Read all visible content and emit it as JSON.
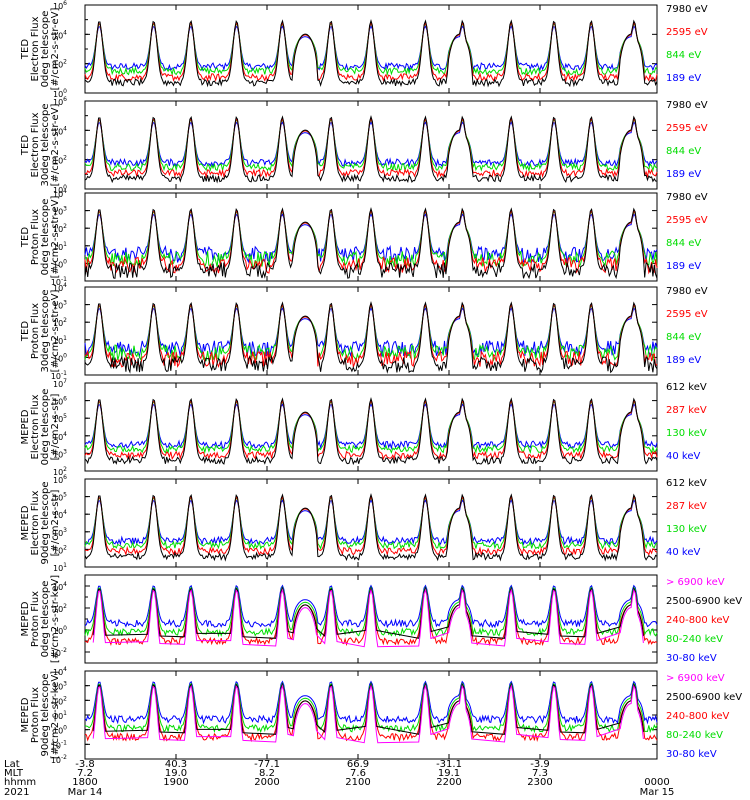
{
  "chart_data": [
    {
      "type": "line",
      "ylabel": [
        "TED",
        "Electron Flux",
        "0deg telescope",
        "[#/cm2-s-str-eV]"
      ],
      "ylim": [
        1,
        1000000
      ],
      "y_log": true,
      "y_ticks": [
        {
          "base": "10",
          "exp": "0"
        },
        {
          "base": "10",
          "exp": "2"
        },
        {
          "base": "10",
          "exp": "4"
        },
        {
          "base": "10",
          "exp": "6"
        }
      ],
      "series": [
        {
          "name": "7980 eV",
          "color": "#000000"
        },
        {
          "name": "2595 eV",
          "color": "#ff0000"
        },
        {
          "name": "844 eV",
          "color": "#00dd00"
        },
        {
          "name": "189 eV",
          "color": "#0000ff"
        }
      ]
    },
    {
      "type": "line",
      "ylabel": [
        "TED",
        "Electron Flux",
        "30deg telescope",
        "[#/cm2-s-str-eV]"
      ],
      "ylim": [
        1,
        1000000
      ],
      "y_log": true,
      "y_ticks": [
        {
          "base": "10",
          "exp": "0"
        },
        {
          "base": "10",
          "exp": "2"
        },
        {
          "base": "10",
          "exp": "4"
        },
        {
          "base": "10",
          "exp": "6"
        }
      ],
      "series": [
        {
          "name": "7980 eV",
          "color": "#000000"
        },
        {
          "name": "2595 eV",
          "color": "#ff0000"
        },
        {
          "name": "844 eV",
          "color": "#00dd00"
        },
        {
          "name": "189 eV",
          "color": "#0000ff"
        }
      ]
    },
    {
      "type": "line",
      "ylabel": [
        "TED",
        "Proton Flux",
        "0deg telescope",
        "[#/cm2-s-str-eV]"
      ],
      "ylim": [
        0.1,
        10000
      ],
      "y_log": true,
      "y_ticks": [
        {
          "base": "10",
          "exp": "-1"
        },
        {
          "base": "10",
          "exp": "0"
        },
        {
          "base": "10",
          "exp": "1"
        },
        {
          "base": "10",
          "exp": "2"
        },
        {
          "base": "10",
          "exp": "3"
        },
        {
          "base": "10",
          "exp": "4"
        }
      ],
      "series": [
        {
          "name": "7980 eV",
          "color": "#000000"
        },
        {
          "name": "2595 eV",
          "color": "#ff0000"
        },
        {
          "name": "844 eV",
          "color": "#00dd00"
        },
        {
          "name": "189 eV",
          "color": "#0000ff"
        }
      ]
    },
    {
      "type": "line",
      "ylabel": [
        "TED",
        "Proton Flux",
        "30deg telescope",
        "[#/cm2-s-str-eV]"
      ],
      "ylim": [
        0.1,
        10000
      ],
      "y_log": true,
      "y_ticks": [
        {
          "base": "10",
          "exp": "-1"
        },
        {
          "base": "10",
          "exp": "0"
        },
        {
          "base": "10",
          "exp": "1"
        },
        {
          "base": "10",
          "exp": "2"
        },
        {
          "base": "10",
          "exp": "3"
        },
        {
          "base": "10",
          "exp": "4"
        }
      ],
      "series": [
        {
          "name": "7980 eV",
          "color": "#000000"
        },
        {
          "name": "2595 eV",
          "color": "#ff0000"
        },
        {
          "name": "844 eV",
          "color": "#00dd00"
        },
        {
          "name": "189 eV",
          "color": "#0000ff"
        }
      ]
    },
    {
      "type": "line",
      "ylabel": [
        "MEPED",
        "Electron Flux",
        "0deg telescope",
        "[#/cm2-s-str]"
      ],
      "ylim": [
        100,
        10000000
      ],
      "y_log": true,
      "y_ticks": [
        {
          "base": "10",
          "exp": "2"
        },
        {
          "base": "10",
          "exp": "3"
        },
        {
          "base": "10",
          "exp": "4"
        },
        {
          "base": "10",
          "exp": "5"
        },
        {
          "base": "10",
          "exp": "6"
        },
        {
          "base": "10",
          "exp": "7"
        }
      ],
      "series": [
        {
          "name": "612 keV",
          "color": "#000000"
        },
        {
          "name": "287 keV",
          "color": "#ff0000"
        },
        {
          "name": "130 keV",
          "color": "#00dd00"
        },
        {
          "name": "40 keV",
          "color": "#0000ff"
        }
      ]
    },
    {
      "type": "line",
      "ylabel": [
        "MEPED",
        "Electron Flux",
        "90deg telescope",
        "[#/cm2-s-str]"
      ],
      "ylim": [
        10,
        1000000
      ],
      "y_log": true,
      "y_ticks": [
        {
          "base": "10",
          "exp": "1"
        },
        {
          "base": "10",
          "exp": "2"
        },
        {
          "base": "10",
          "exp": "3"
        },
        {
          "base": "10",
          "exp": "4"
        },
        {
          "base": "10",
          "exp": "5"
        },
        {
          "base": "10",
          "exp": "6"
        }
      ],
      "series": [
        {
          "name": "612 keV",
          "color": "#000000"
        },
        {
          "name": "287 keV",
          "color": "#ff0000"
        },
        {
          "name": "130 keV",
          "color": "#00dd00"
        },
        {
          "name": "40 keV",
          "color": "#0000ff"
        }
      ]
    },
    {
      "type": "line",
      "ylabel": [
        "MEPED",
        "Proton Flux",
        "0deg telescope",
        "[#/cm2-s-str-keV]"
      ],
      "ylim": [
        0.001,
        100000
      ],
      "y_log": true,
      "y_ticks": [
        {
          "base": "10",
          "exp": "-2"
        },
        {
          "base": "10",
          "exp": "0"
        },
        {
          "base": "10",
          "exp": "2"
        },
        {
          "base": "10",
          "exp": "4"
        }
      ],
      "series": [
        {
          "name": "> 6900 keV",
          "color": "#ff00ff"
        },
        {
          "name": "2500-6900 keV",
          "color": "#000000"
        },
        {
          "name": "240-800 keV",
          "color": "#ff0000"
        },
        {
          "name": "80-240 keV",
          "color": "#00dd00"
        },
        {
          "name": "30-80 keV",
          "color": "#0000ff"
        }
      ]
    },
    {
      "type": "line",
      "ylabel": [
        "MEPED",
        "Proton Flux",
        "90deg telescope",
        "[#/cm2-s-str-keV]"
      ],
      "ylim": [
        0.01,
        10000
      ],
      "y_log": true,
      "y_ticks": [
        {
          "base": "10",
          "exp": "-2"
        },
        {
          "base": "10",
          "exp": "-1"
        },
        {
          "base": "10",
          "exp": "0"
        },
        {
          "base": "10",
          "exp": "1"
        },
        {
          "base": "10",
          "exp": "2"
        },
        {
          "base": "10",
          "exp": "3"
        },
        {
          "base": "10",
          "exp": "4"
        }
      ],
      "series": [
        {
          "name": "> 6900 keV",
          "color": "#ff00ff"
        },
        {
          "name": "2500-6900 keV",
          "color": "#000000"
        },
        {
          "name": "240-800 keV",
          "color": "#ff0000"
        },
        {
          "name": "80-240 keV",
          "color": "#00dd00"
        },
        {
          "name": "30-80 keV",
          "color": "#0000ff"
        }
      ]
    }
  ],
  "x_axis": {
    "row_labels": [
      "Lat",
      "MLT",
      "hhmm",
      "2021"
    ],
    "ticks": [
      {
        "lat": "-3.8",
        "mlt": "7.2",
        "hhmm": "1800",
        "date": "Mar 14"
      },
      {
        "lat": "40.3",
        "mlt": "19.0",
        "hhmm": "1900",
        "date": ""
      },
      {
        "lat": "-77.1",
        "mlt": "8.2",
        "hhmm": "2000",
        "date": ""
      },
      {
        "lat": "66.9",
        "mlt": "7.6",
        "hhmm": "2100",
        "date": ""
      },
      {
        "lat": "-31.1",
        "mlt": "19.1",
        "hhmm": "2200",
        "date": ""
      },
      {
        "lat": "-3.9",
        "mlt": "7.3",
        "hhmm": "2300",
        "date": ""
      },
      {
        "lat": "",
        "mlt": "",
        "hhmm": "0000",
        "date": "Mar 15"
      }
    ]
  }
}
